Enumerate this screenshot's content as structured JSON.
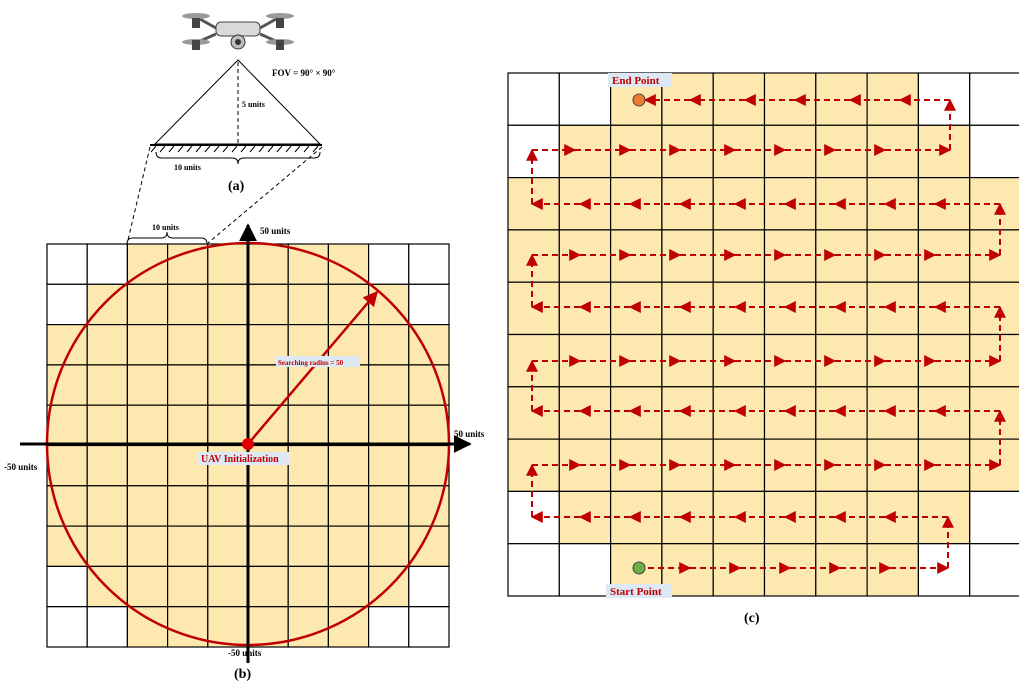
{
  "panel_a": {
    "caption": "(a)",
    "fov_label": "FOV = 90° × 90°",
    "height_label": "5 units",
    "width_label": "10 units"
  },
  "panel_b": {
    "caption": "(b)",
    "cell_label": "10 units",
    "axis_top": "50 units",
    "axis_right": "50 units",
    "axis_left": "-50 units",
    "axis_bottom": "-50 units",
    "radius_label": "Searching radius = 50",
    "origin_label": "UAV Initialization",
    "grid_size": 10,
    "cell_fill_color": "#fde9b0",
    "circle_color": "#c00000",
    "uncovered_cells": [
      "0,0",
      "0,1",
      "0,8",
      "0,9",
      "1,0",
      "1,9",
      "8,0",
      "8,9",
      "9,0",
      "9,1",
      "9,8",
      "9,9"
    ]
  },
  "panel_c": {
    "caption": "(c)",
    "end_label": "End Point",
    "start_label": "Start Point",
    "grid_size": 10,
    "start_color": "#70ad47",
    "end_color": "#ed7d31",
    "path_color": "#c00000",
    "uncovered_cells": [
      "0,0",
      "0,1",
      "0,8",
      "0,9",
      "1,0",
      "1,9",
      "8,0",
      "8,9",
      "9,0",
      "9,1",
      "9,8",
      "9,9"
    ]
  }
}
